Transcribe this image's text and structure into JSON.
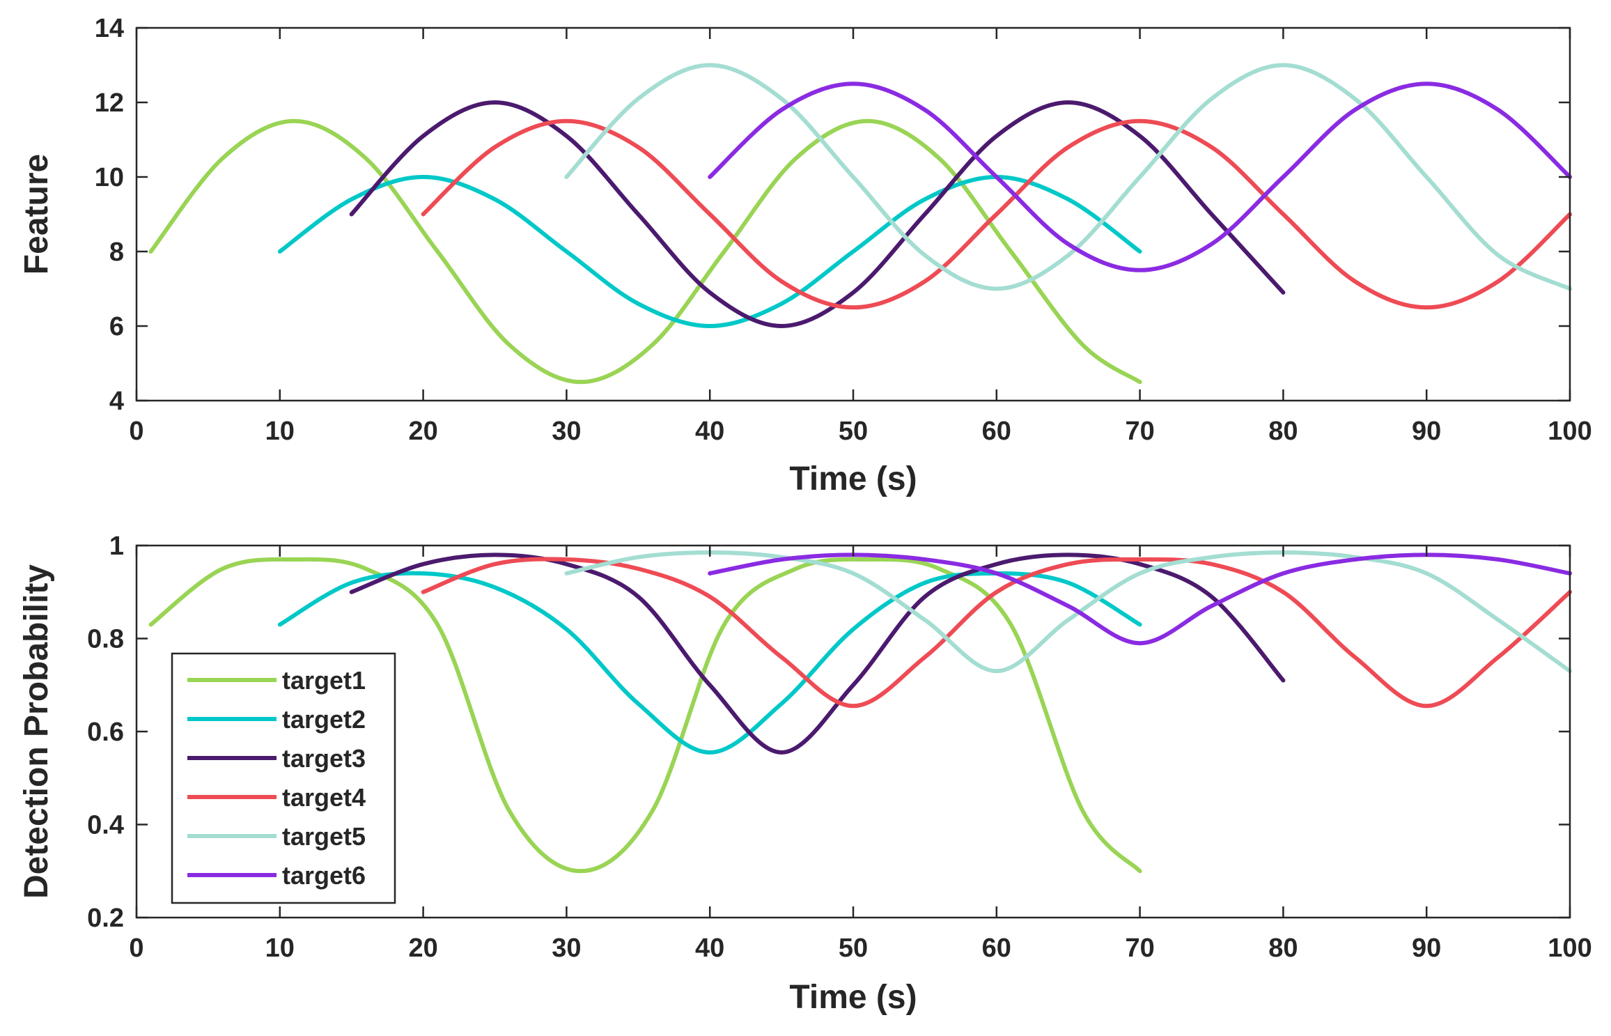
{
  "chart_data": [
    {
      "type": "line",
      "xlabel": "Time (s)",
      "ylabel": "Feature",
      "xlim": [
        0,
        100
      ],
      "ylim": [
        4,
        14
      ],
      "xticks": [
        "0",
        "10",
        "20",
        "30",
        "40",
        "50",
        "60",
        "70",
        "80",
        "90",
        "100"
      ],
      "yticks": [
        "4",
        "6",
        "8",
        "10",
        "12",
        "14"
      ],
      "grid": false,
      "series": [
        {
          "name": "target1",
          "color": "#99D454",
          "x": [
            1,
            6,
            11,
            16,
            21,
            26,
            31,
            36,
            41,
            46,
            51,
            56,
            61,
            66,
            70
          ],
          "y": [
            8.0,
            10.5,
            11.5,
            10.5,
            8.0,
            5.5,
            4.5,
            5.5,
            8.0,
            10.5,
            11.5,
            10.5,
            8.0,
            5.5,
            4.5
          ]
        },
        {
          "name": "target2",
          "color": "#00C8C8",
          "x": [
            10,
            15,
            20,
            25,
            30,
            35,
            40,
            45,
            50,
            55,
            60,
            65,
            70
          ],
          "y": [
            8.0,
            9.4,
            10.0,
            9.4,
            8.0,
            6.6,
            6.0,
            6.6,
            8.0,
            9.4,
            10.0,
            9.4,
            8.0
          ]
        },
        {
          "name": "target3",
          "color": "#4B1A6E",
          "x": [
            15,
            20,
            25,
            30,
            35,
            40,
            45,
            50,
            55,
            60,
            65,
            70,
            75,
            80
          ],
          "y": [
            9.0,
            11.1,
            12.0,
            11.1,
            9.0,
            6.9,
            6.0,
            6.9,
            9.0,
            11.1,
            12.0,
            11.1,
            9.0,
            6.9
          ]
        },
        {
          "name": "target4",
          "color": "#EE4B55",
          "x": [
            20,
            25,
            30,
            35,
            40,
            45,
            50,
            55,
            60,
            65,
            70,
            75,
            80,
            85,
            90,
            95,
            100
          ],
          "y": [
            9.0,
            10.8,
            11.5,
            10.8,
            9.0,
            7.2,
            6.5,
            7.2,
            9.0,
            10.8,
            11.5,
            10.8,
            9.0,
            7.2,
            6.5,
            7.2,
            9.0
          ]
        },
        {
          "name": "target5",
          "color": "#A4DDD2",
          "x": [
            30,
            35,
            40,
            45,
            50,
            55,
            60,
            65,
            70,
            75,
            80,
            85,
            90,
            95,
            100
          ],
          "y": [
            10.0,
            12.1,
            13.0,
            12.1,
            10.0,
            7.9,
            7.0,
            7.9,
            10.0,
            12.1,
            13.0,
            12.1,
            10.0,
            7.9,
            7.0
          ]
        },
        {
          "name": "target6",
          "color": "#8A2BE2",
          "x": [
            40,
            45,
            50,
            55,
            60,
            65,
            70,
            75,
            80,
            85,
            90,
            95,
            100
          ],
          "y": [
            10.0,
            11.8,
            12.5,
            11.8,
            10.0,
            8.2,
            7.5,
            8.2,
            10.0,
            11.8,
            12.5,
            11.8,
            10.0
          ]
        }
      ]
    },
    {
      "type": "line",
      "xlabel": "Time (s)",
      "ylabel": "Detection Probability",
      "xlim": [
        0,
        100
      ],
      "ylim": [
        0.2,
        1
      ],
      "xticks": [
        "0",
        "10",
        "20",
        "30",
        "40",
        "50",
        "60",
        "70",
        "80",
        "90",
        "100"
      ],
      "yticks": [
        "0.2",
        "0.4",
        "0.6",
        "0.8",
        "1"
      ],
      "grid": false,
      "legend": "lower-left",
      "series": [
        {
          "name": "target1",
          "color": "#99D454",
          "x": [
            1,
            6,
            11,
            16,
            21,
            26,
            31,
            36,
            41,
            46,
            51,
            56,
            61,
            66,
            70
          ],
          "y": [
            0.83,
            0.95,
            0.97,
            0.95,
            0.83,
            0.43,
            0.3,
            0.43,
            0.83,
            0.95,
            0.97,
            0.95,
            0.83,
            0.43,
            0.3
          ]
        },
        {
          "name": "target2",
          "color": "#00C8C8",
          "x": [
            10,
            15,
            20,
            25,
            30,
            35,
            40,
            45,
            50,
            55,
            60,
            65,
            70
          ],
          "y": [
            0.83,
            0.92,
            0.94,
            0.91,
            0.82,
            0.66,
            0.555,
            0.66,
            0.82,
            0.92,
            0.94,
            0.92,
            0.83
          ]
        },
        {
          "name": "target3",
          "color": "#4B1A6E",
          "x": [
            15,
            20,
            25,
            30,
            35,
            40,
            45,
            50,
            55,
            60,
            65,
            70,
            75,
            80
          ],
          "y": [
            0.9,
            0.96,
            0.98,
            0.96,
            0.89,
            0.7,
            0.555,
            0.7,
            0.89,
            0.96,
            0.98,
            0.96,
            0.89,
            0.71
          ]
        },
        {
          "name": "target4",
          "color": "#EE4B55",
          "x": [
            20,
            25,
            30,
            35,
            40,
            45,
            50,
            55,
            60,
            65,
            70,
            75,
            80,
            85,
            90,
            95,
            100
          ],
          "y": [
            0.9,
            0.96,
            0.97,
            0.95,
            0.89,
            0.76,
            0.655,
            0.76,
            0.9,
            0.96,
            0.97,
            0.96,
            0.9,
            0.76,
            0.655,
            0.76,
            0.9
          ]
        },
        {
          "name": "target5",
          "color": "#A4DDD2",
          "x": [
            30,
            35,
            40,
            45,
            50,
            55,
            60,
            65,
            70,
            75,
            80,
            85,
            90,
            95,
            100
          ],
          "y": [
            0.94,
            0.975,
            0.985,
            0.975,
            0.94,
            0.84,
            0.73,
            0.84,
            0.94,
            0.975,
            0.985,
            0.975,
            0.94,
            0.84,
            0.73
          ]
        },
        {
          "name": "target6",
          "color": "#8A2BE2",
          "x": [
            40,
            45,
            50,
            55,
            60,
            65,
            70,
            75,
            80,
            85,
            90,
            95,
            100
          ],
          "y": [
            0.94,
            0.97,
            0.98,
            0.97,
            0.94,
            0.87,
            0.79,
            0.87,
            0.94,
            0.97,
            0.98,
            0.97,
            0.94
          ]
        }
      ]
    }
  ]
}
